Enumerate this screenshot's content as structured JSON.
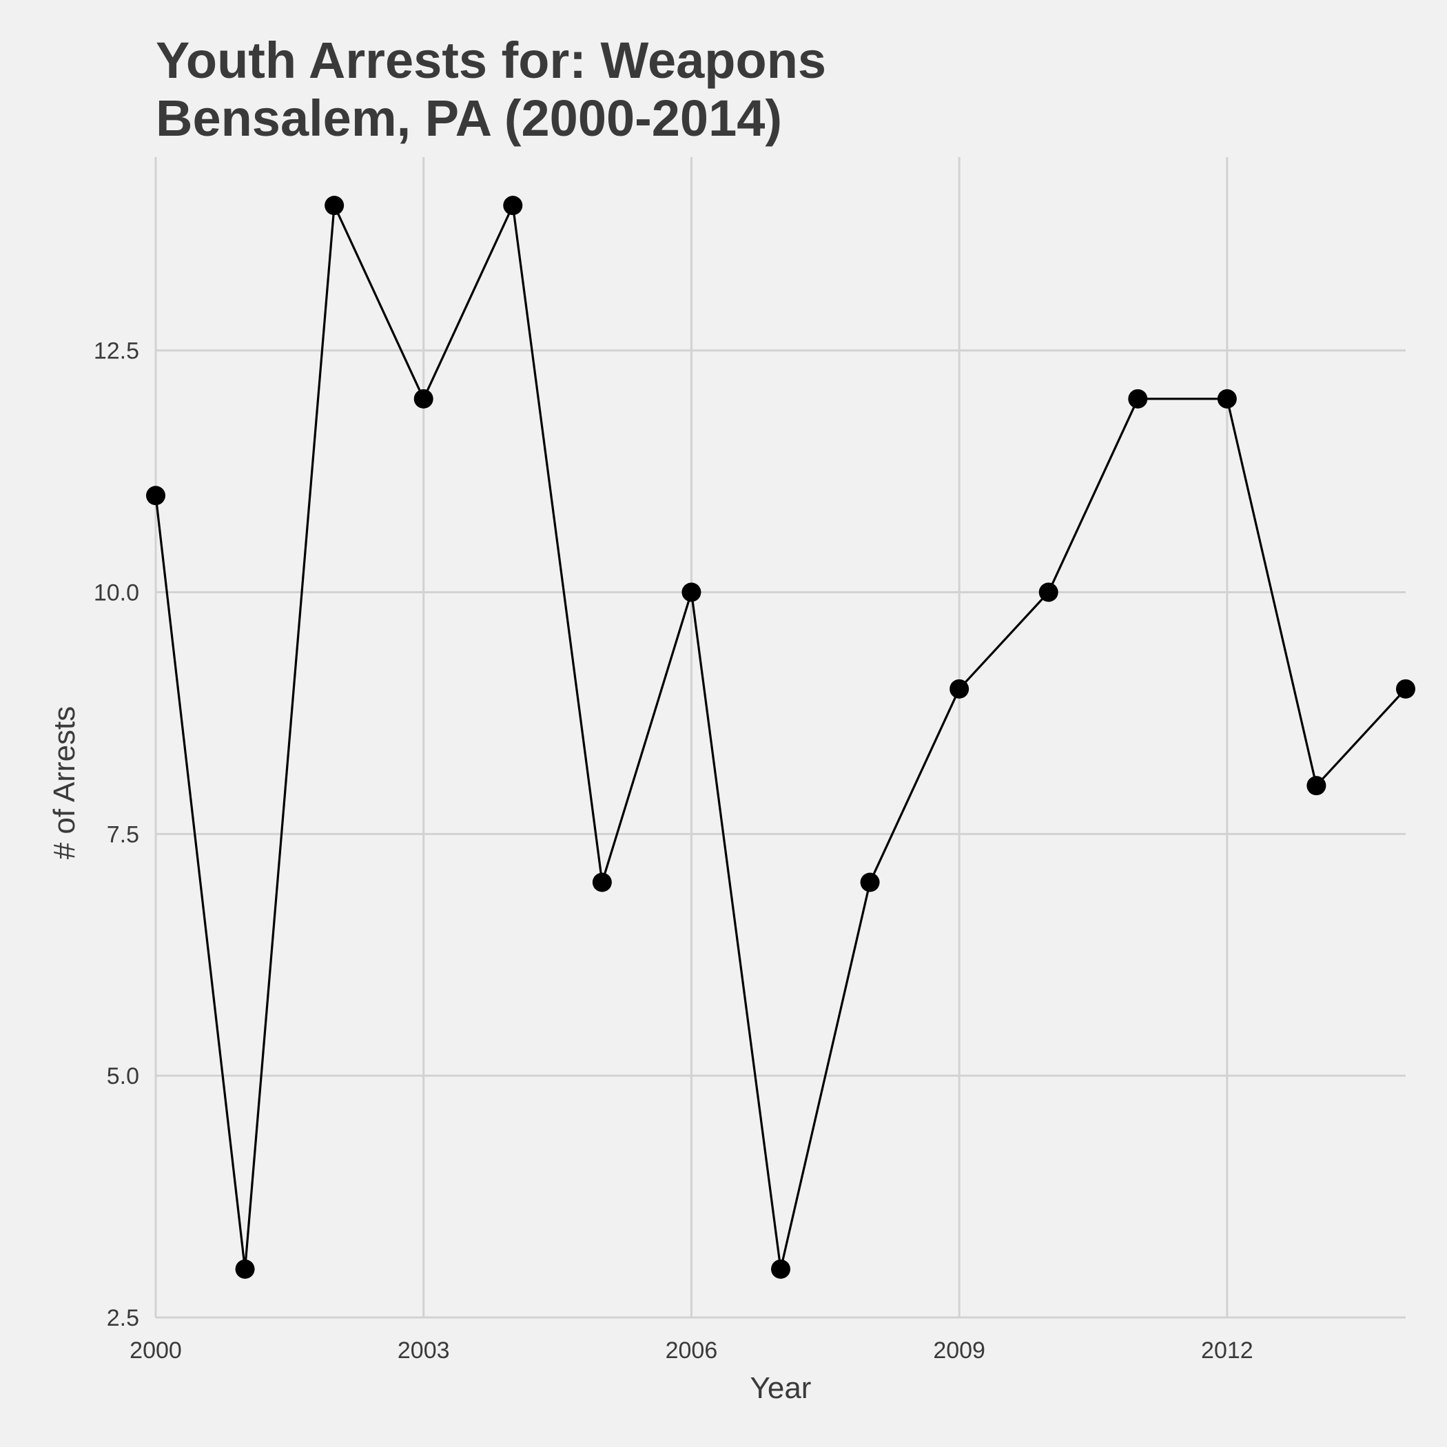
{
  "chart_data": {
    "type": "line",
    "title_lines": [
      "Youth Arrests for: Weapons",
      "Bensalem, PA (2000-2014)"
    ],
    "xlabel": "Year",
    "ylabel": "# of Arrests",
    "x": [
      2000,
      2001,
      2002,
      2003,
      2004,
      2005,
      2006,
      2007,
      2008,
      2009,
      2010,
      2011,
      2012,
      2013,
      2014
    ],
    "series": [
      {
        "values": [
          11,
          3,
          14,
          12,
          14,
          7,
          10,
          3,
          7,
          9,
          10,
          12,
          12,
          8,
          9
        ]
      }
    ],
    "xlim": [
      2000,
      2014
    ],
    "ylim": [
      2.5,
      14.5
    ],
    "x_ticks": [
      2000,
      2003,
      2006,
      2009,
      2012
    ],
    "x_tick_labels": [
      "2000",
      "2003",
      "2006",
      "2009",
      "2012"
    ],
    "y_ticks": [
      2.5,
      5.0,
      7.5,
      10.0,
      12.5
    ],
    "y_tick_labels": [
      "2.5",
      "5.0",
      "7.5",
      "10.0",
      "12.5"
    ],
    "grid": true,
    "legend": "none",
    "colors": {
      "background": "#f1f1f1",
      "grid": "#d2d2d2",
      "line": "#000000",
      "text": "#3a3a3a"
    }
  }
}
